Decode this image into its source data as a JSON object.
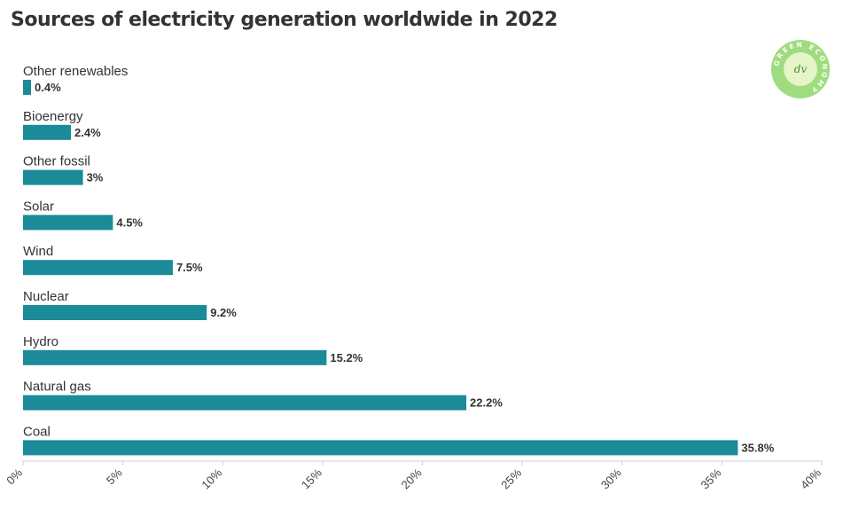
{
  "title": "Sources of electricity generation worldwide in 2022",
  "logo": {
    "ring_text": "GREEN ECONOMY",
    "monogram": "dv",
    "icon": "green-economy-logo-icon",
    "color": "#9fdc7f"
  },
  "chart_data": {
    "type": "bar",
    "orientation": "horizontal",
    "categories": [
      "Other renewables",
      "Bioenergy",
      "Other fossil",
      "Solar",
      "Wind",
      "Nuclear",
      "Hydro",
      "Natural gas",
      "Coal"
    ],
    "values": [
      0.4,
      2.4,
      3,
      4.5,
      7.5,
      9.2,
      15.2,
      22.2,
      35.8
    ],
    "value_labels": [
      "0.4%",
      "2.4%",
      "3%",
      "4.5%",
      "7.5%",
      "9.2%",
      "15.2%",
      "22.2%",
      "35.8%"
    ],
    "xlim": [
      0,
      40
    ],
    "ticks": [
      0,
      5,
      10,
      15,
      20,
      25,
      30,
      35,
      40
    ],
    "tick_labels": [
      "0%",
      "5%",
      "10%",
      "15%",
      "20%",
      "25%",
      "30%",
      "35%",
      "40%"
    ],
    "bar_color": "#1b8a99",
    "grid": false,
    "legend": "none"
  }
}
